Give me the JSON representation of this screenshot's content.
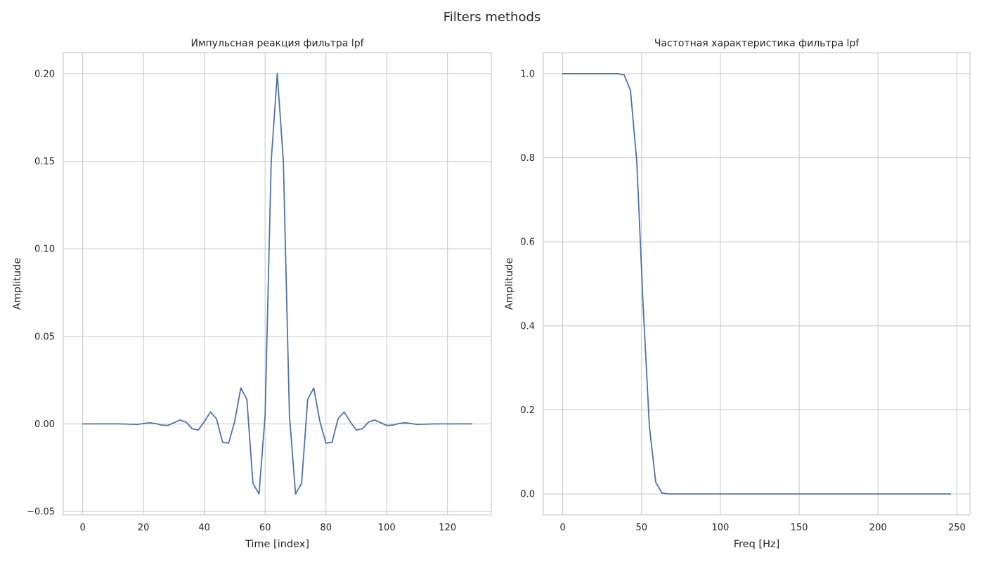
{
  "figure": {
    "title": "Filters methods",
    "line_color": "#4c72b0"
  },
  "chart_data": [
    {
      "type": "line",
      "title": "Импульсная реакция фильтра lpf",
      "xlabel": "Time [index]",
      "ylabel": "Amplitude",
      "xlim": [
        -6.4,
        134.4
      ],
      "ylim": [
        -0.052,
        0.212
      ],
      "xticks": [
        0,
        20,
        40,
        60,
        80,
        100,
        120
      ],
      "yticks": [
        -0.05,
        0.0,
        0.05,
        0.1,
        0.15,
        0.2
      ],
      "ytick_labels": [
        "−0.05",
        "0.00",
        "0.05",
        "0.10",
        "0.15",
        "0.20"
      ],
      "grid": true,
      "series": [
        {
          "x": [
            0,
            12,
            16,
            18,
            20,
            22,
            24,
            26,
            28,
            30,
            32,
            34,
            36,
            38,
            40,
            42,
            44,
            46,
            48,
            50,
            52,
            54,
            56,
            58,
            60,
            62,
            64,
            66,
            68,
            70,
            72,
            74,
            76,
            78,
            80,
            82,
            84,
            86,
            88,
            90,
            92,
            94,
            96,
            98,
            100,
            102,
            104,
            106,
            108,
            110,
            112,
            116,
            128
          ],
          "y": [
            0.0,
            0.0,
            -0.0002,
            -0.0003,
            0.0002,
            0.0006,
            0.0002,
            -0.0007,
            -0.0009,
            0.0007,
            0.0022,
            0.001,
            -0.0028,
            -0.0035,
            0.0012,
            0.0068,
            0.003,
            -0.0105,
            -0.011,
            0.0015,
            0.0205,
            0.014,
            -0.034,
            -0.04,
            0.005,
            0.15,
            0.2,
            0.15,
            0.005,
            -0.04,
            -0.034,
            0.014,
            0.0205,
            0.0015,
            -0.011,
            -0.0105,
            0.003,
            0.0068,
            0.0012,
            -0.0035,
            -0.0028,
            0.001,
            0.0022,
            0.0007,
            -0.0009,
            -0.0007,
            0.0002,
            0.0006,
            0.0002,
            -0.0003,
            -0.0002,
            0.0,
            0.0
          ]
        }
      ]
    },
    {
      "type": "line",
      "title": "Частотная характеристика фильтра lpf",
      "xlabel": "Freq [Hz]",
      "ylabel": "Amplitude",
      "xlim": [
        -12.3,
        258.3
      ],
      "ylim": [
        -0.05,
        1.05
      ],
      "xticks": [
        0,
        50,
        100,
        150,
        200,
        250
      ],
      "yticks": [
        0.0,
        0.2,
        0.4,
        0.6,
        0.8,
        1.0
      ],
      "ytick_labels": [
        "0.0",
        "0.2",
        "0.4",
        "0.6",
        "0.8",
        "1.0"
      ],
      "grid": true,
      "series": [
        {
          "x": [
            0,
            35,
            39,
            43,
            47,
            51,
            55,
            59,
            63,
            67,
            246
          ],
          "y": [
            1.0,
            1.0,
            0.997,
            0.96,
            0.79,
            0.45,
            0.16,
            0.028,
            0.002,
            0.0,
            0.0
          ]
        }
      ]
    }
  ]
}
